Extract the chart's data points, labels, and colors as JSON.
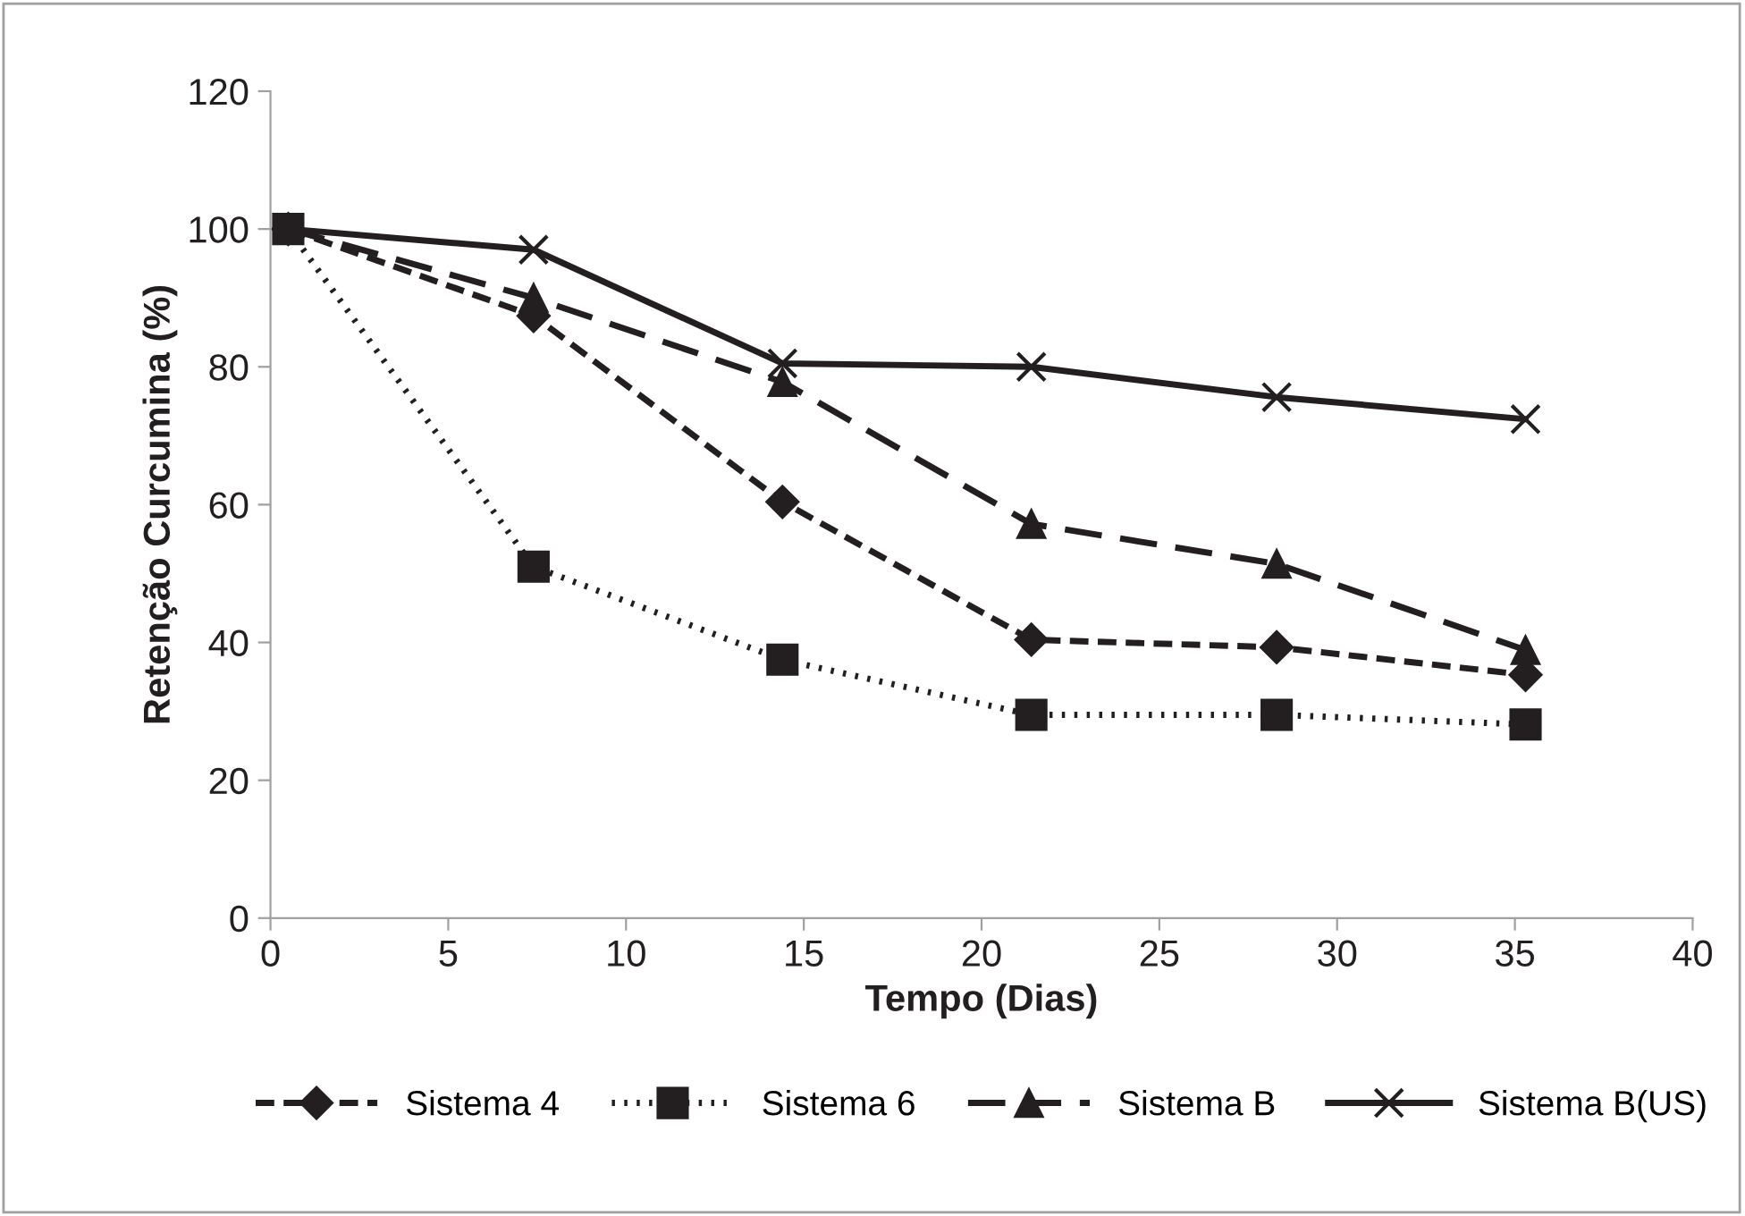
{
  "chart_data": {
    "type": "line",
    "xlabel": "Tempo (Dias)",
    "ylabel": "Retenção Curcumina (%)",
    "x": [
      0.5,
      7.4,
      14.4,
      21.4,
      28.3,
      35.3
    ],
    "xlim": [
      0,
      40
    ],
    "xticks": [
      0,
      5,
      10,
      15,
      20,
      25,
      30,
      35,
      40
    ],
    "ylim": [
      0,
      120
    ],
    "yticks": [
      0,
      20,
      40,
      60,
      80,
      100,
      120
    ],
    "grid": false,
    "legend": "bottom",
    "series": [
      {
        "name": "Sistema 4",
        "color": "#231f20",
        "marker": "diamond",
        "line_style": "dashed",
        "values": [
          100,
          87.4,
          60.4,
          40.4,
          39.3,
          35.3
        ]
      },
      {
        "name": "Sistema 6",
        "color": "#231f20",
        "marker": "square",
        "line_style": "dotted",
        "values": [
          100,
          51.0,
          37.5,
          29.5,
          29.5,
          28.1
        ]
      },
      {
        "name": "Sistema B",
        "color": "#231f20",
        "marker": "triangle",
        "line_style": "longdash",
        "values": [
          100,
          90.0,
          77.8,
          57.2,
          51.4,
          38.9
        ]
      },
      {
        "name": "Sistema B(US)",
        "color": "#231f20",
        "marker": "cross",
        "line_style": "solid",
        "values": [
          100,
          97.0,
          80.5,
          80.0,
          75.6,
          72.4
        ]
      }
    ]
  }
}
